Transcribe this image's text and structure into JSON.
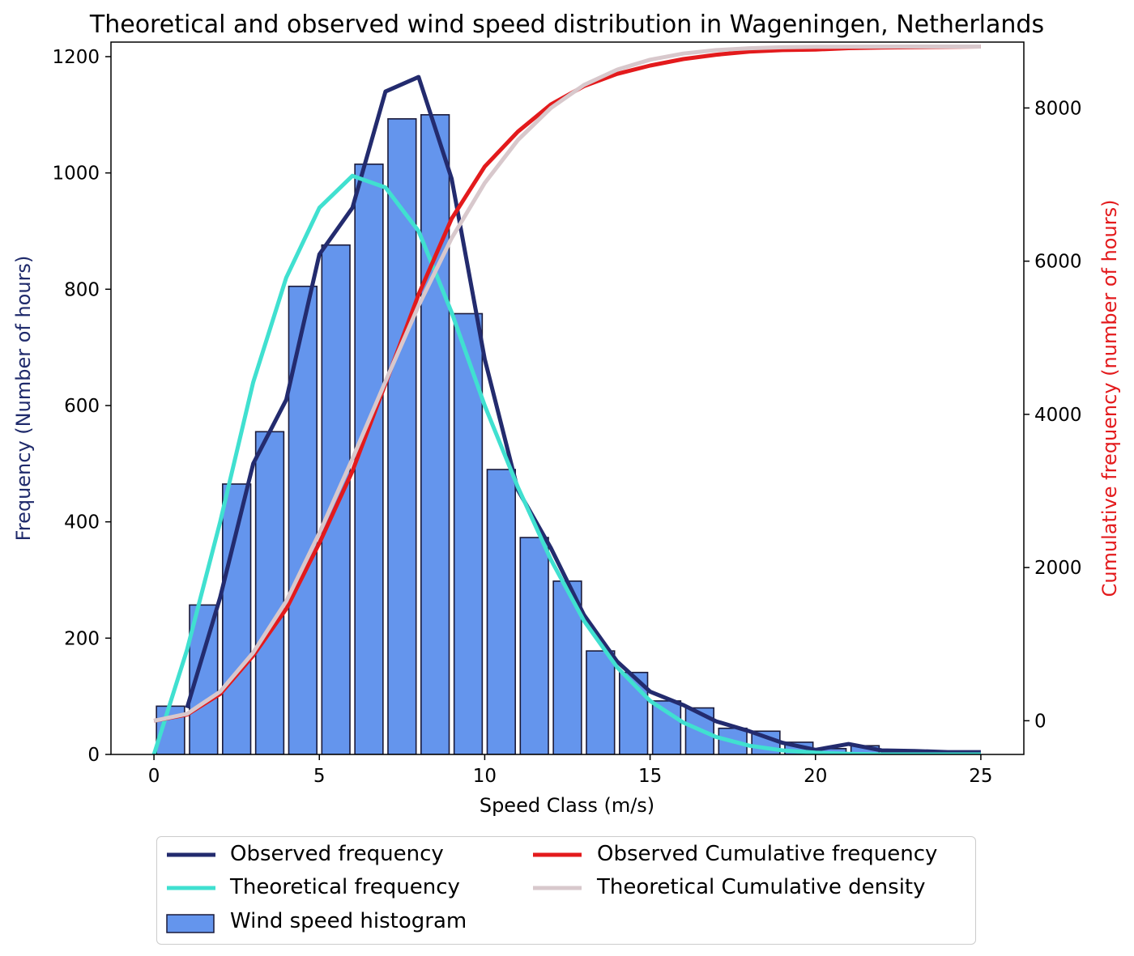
{
  "chart_data": {
    "type": "bar",
    "title": "Theoretical and observed wind speed distribution in Wageningen, Netherlands",
    "xlabel": "Speed Class (m/s)",
    "ylabel": "Frequency (Number of hours)",
    "y2label": "Cumulative frequency (number of hours)",
    "xlim": [
      -1.3,
      26.3
    ],
    "ylim": [
      0,
      1225
    ],
    "y2lim": [
      -440,
      8860
    ],
    "xticks": [
      0,
      5,
      10,
      15,
      20,
      25
    ],
    "yticks": [
      0,
      200,
      400,
      600,
      800,
      1000,
      1200
    ],
    "y2ticks": [
      0,
      2000,
      4000,
      6000,
      8000
    ],
    "grid": false,
    "legend_position": "bottom-center",
    "colors": {
      "ylabel": "#1f2a6b",
      "y2label": "#e31a1c",
      "histogram": "#6495ed",
      "histogram_edge": "#1a1a3a",
      "observed_frequency": "#232b6e",
      "theoretical_frequency": "#40e0d0",
      "observed_cumulative": "#e31a1c",
      "theoretical_cumulative": "#d8c8cc"
    },
    "histogram": {
      "name": "Wind speed histogram",
      "x": [
        0.5,
        1.5,
        2.5,
        3.5,
        4.5,
        5.5,
        6.5,
        7.5,
        8.5,
        9.5,
        10.5,
        11.5,
        12.5,
        13.5,
        14.5,
        15.5,
        16.5,
        17.5,
        18.5,
        19.5,
        20.5,
        21.5,
        22.5,
        23.5,
        24.5
      ],
      "values": [
        83,
        257,
        465,
        555,
        805,
        876,
        1015,
        1093,
        1100,
        758,
        490,
        373,
        298,
        178,
        141,
        92,
        80,
        45,
        40,
        21,
        10,
        15,
        7,
        5,
        4
      ]
    },
    "series": [
      {
        "name": "Observed frequency",
        "axis": "left",
        "x": [
          1,
          2,
          3,
          4,
          5,
          6,
          7,
          8,
          9,
          10,
          11,
          12,
          13,
          14,
          15,
          16,
          17,
          18,
          19,
          20,
          21,
          22,
          23,
          24,
          25
        ],
        "y": [
          80,
          270,
          500,
          610,
          860,
          940,
          1140,
          1165,
          990,
          680,
          455,
          355,
          240,
          160,
          108,
          85,
          57,
          40,
          20,
          8,
          18,
          7,
          6,
          4,
          4
        ]
      },
      {
        "name": "Theoretical frequency",
        "axis": "left",
        "x": [
          0,
          1,
          2,
          3,
          4,
          5,
          6,
          7,
          8,
          9,
          10,
          11,
          12,
          13,
          14,
          15,
          16,
          17,
          18,
          19,
          20,
          21,
          22,
          23,
          24,
          25
        ],
        "y": [
          0,
          180,
          400,
          640,
          820,
          940,
          995,
          975,
          900,
          760,
          600,
          460,
          335,
          230,
          150,
          92,
          55,
          30,
          15,
          7,
          3,
          1,
          0,
          0,
          0,
          0
        ]
      },
      {
        "name": "Observed Cumulative frequency",
        "axis": "right",
        "x": [
          0,
          1,
          2,
          3,
          4,
          5,
          6,
          7,
          8,
          9,
          10,
          11,
          12,
          13,
          14,
          15,
          16,
          17,
          18,
          19,
          20,
          21,
          22,
          23,
          24,
          25
        ],
        "y": [
          0,
          80,
          350,
          850,
          1460,
          2320,
          3260,
          4400,
          5565,
          6555,
          7235,
          7690,
          8045,
          8285,
          8445,
          8553,
          8638,
          8695,
          8735,
          8755,
          8763,
          8781,
          8788,
          8794,
          8798,
          8802
        ]
      },
      {
        "name": "Theoretical Cumulative density",
        "axis": "right",
        "x": [
          0,
          1,
          2,
          3,
          4,
          5,
          6,
          7,
          8,
          9,
          10,
          11,
          12,
          13,
          14,
          15,
          16,
          17,
          18,
          19,
          20,
          21,
          22,
          23,
          24,
          25
        ],
        "y": [
          0,
          90,
          380,
          890,
          1560,
          2450,
          3420,
          4430,
          5420,
          6300,
          7020,
          7580,
          8000,
          8300,
          8500,
          8630,
          8710,
          8755,
          8780,
          8792,
          8798,
          8800,
          8801,
          8802,
          8802,
          8802
        ]
      }
    ],
    "legend": [
      "Observed frequency",
      "Theoretical frequency",
      "Wind speed histogram",
      "Observed Cumulative frequency",
      "Theoretical Cumulative density"
    ]
  }
}
